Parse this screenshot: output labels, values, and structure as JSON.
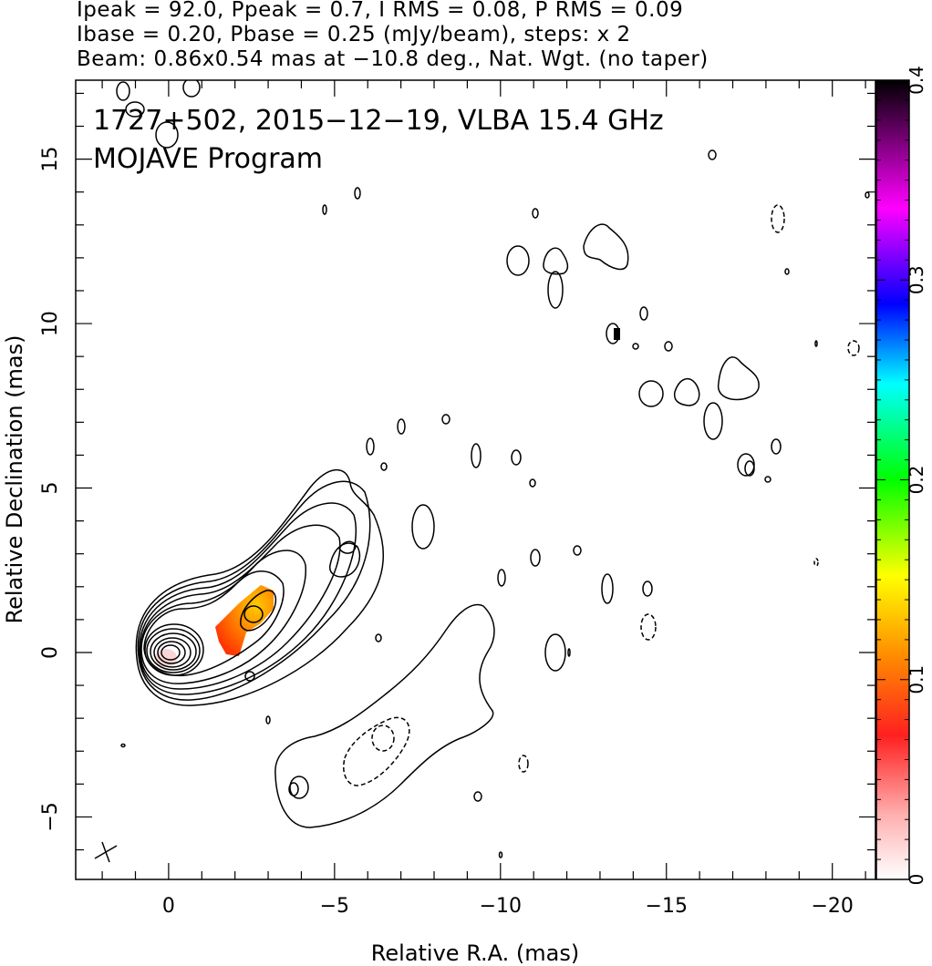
{
  "header": {
    "line1": "Ipeak = 92.0, Ppeak = 0.7, I RMS = 0.08, P RMS = 0.09",
    "line2": "Ibase = 0.20, Pbase = 0.25 (mJy/beam), steps: x 2",
    "line3": "Beam: 0.86x0.54 mas at −10.8 deg., Nat. Wgt. (no taper)"
  },
  "chart_data": {
    "type": "contour",
    "title": "1727+502, 2015−12−19, VLBA 15.4 GHz",
    "subtitle": "MOJAVE Program",
    "xlabel": "Relative R.A. (mas)",
    "ylabel": "Relative Declination (mas)",
    "xlim": [
      2.8,
      -21.3
    ],
    "ylim": [
      -6.9,
      17.4
    ],
    "xticks": [
      0,
      -5,
      -10,
      -15,
      -20
    ],
    "xtick_labels": [
      "0",
      "−5",
      "−10",
      "−15",
      "−20"
    ],
    "yticks": [
      -5,
      0,
      5,
      10,
      15
    ],
    "ytick_labels": [
      "−5",
      "0",
      "5",
      "10",
      "15"
    ],
    "colorbar": {
      "range": [
        0,
        0.4
      ],
      "ticks": [
        0,
        0.1,
        0.2,
        0.3,
        0.4
      ],
      "tick_labels": [
        "0",
        "0.1",
        "0.2",
        "0.3",
        "0.4"
      ],
      "colors": [
        "#ffffff",
        "#ff0000",
        "#ff8c00",
        "#ffff00",
        "#00ff00",
        "#00ffff",
        "#0000ff",
        "#ff00ff",
        "#000000"
      ]
    },
    "core": {
      "x": 0,
      "y": 0,
      "nested_contours": 9
    },
    "polarization_patch": {
      "x_range": [
        -1.4,
        -3.2
      ],
      "y_range": [
        0.0,
        2.0
      ]
    },
    "beam": {
      "major": 0.86,
      "minor": 0.54,
      "pa_deg": -10.8,
      "x": -2.0,
      "y": -6.2
    },
    "contour_levels_mjy": [
      0.2,
      0.4,
      0.8,
      1.6,
      3.2,
      6.4,
      12.8,
      25.6,
      51.2
    ]
  }
}
